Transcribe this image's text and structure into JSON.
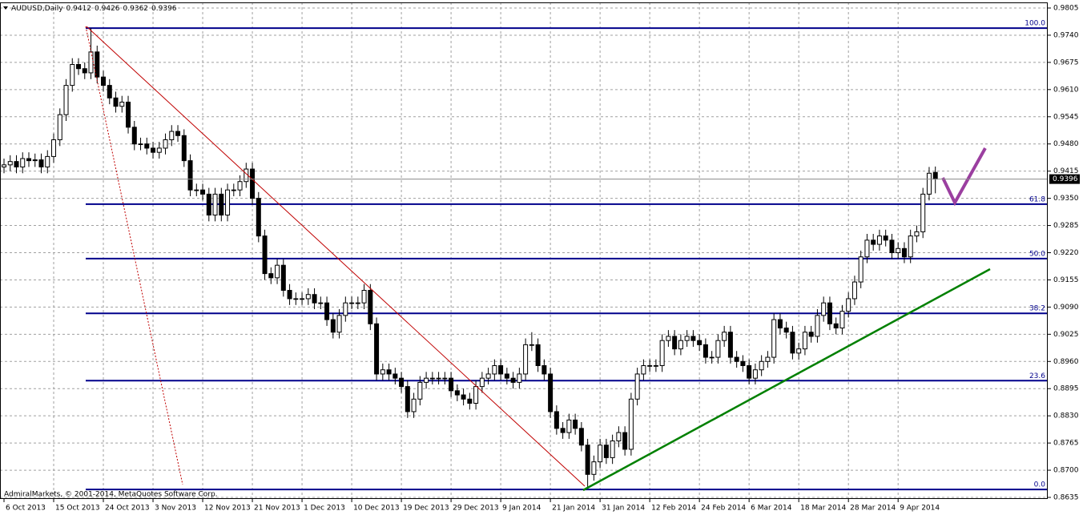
{
  "chart_data": {
    "type": "candlestick",
    "symbol": "AUDUSD,Daily",
    "copyright": "AdmiralMarkets, © 2001-2014, MetaQuotes Software Corp.",
    "ylim": [
      0.86312,
      0.98184
    ],
    "xlim": [
      -0.645,
      168.1
    ],
    "grid": true,
    "bull_color": "#ffffff",
    "bear_color": "#000000",
    "yticks": [
      0.9805,
      {
        "value": 0.974,
        "label": "0.9740"
      },
      0.9675,
      {
        "value": 0.961,
        "label": "0.9610"
      },
      0.9545,
      {
        "value": 0.948,
        "label": "0.9480"
      },
      0.9415,
      {
        "value": 0.935,
        "label": "0.9350"
      },
      0.9285,
      {
        "value": 0.922,
        "label": "0.9220"
      },
      0.9155,
      {
        "value": 0.909,
        "label": "0.9090"
      },
      0.9025,
      {
        "value": 0.896,
        "label": "0.8960"
      },
      0.8895,
      {
        "value": 0.883,
        "label": "0.8830"
      },
      0.8765,
      {
        "value": 0.87,
        "label": "0.8700"
      },
      0.8635
    ],
    "xticks": [
      {
        "value": 0,
        "label": "6 Oct 2013"
      },
      {
        "value": 8,
        "label": "15 Oct 2013"
      },
      {
        "value": 16,
        "label": "24 Oct 2013"
      },
      {
        "value": 24,
        "label": "3 Nov 2013"
      },
      {
        "value": 32,
        "label": "12 Nov 2013"
      },
      {
        "value": 40,
        "label": "21 Nov 2013"
      },
      {
        "value": 48,
        "label": "1 Dec 2013"
      },
      {
        "value": 56,
        "label": "10 Dec 2013"
      },
      {
        "value": 64,
        "label": "19 Dec 2013"
      },
      {
        "value": 72,
        "label": "29 Dec 2013"
      },
      {
        "value": 80,
        "label": "9 Jan 2014"
      },
      {
        "value": 88,
        "label": "21 Jan 2014"
      },
      {
        "value": 96,
        "label": "31 Jan 2014"
      },
      {
        "value": 104,
        "label": "12 Feb 2014"
      },
      {
        "value": 112,
        "label": "24 Feb 2014"
      },
      {
        "value": 120,
        "label": "6 Mar 2014"
      },
      {
        "value": 128,
        "label": "18 Mar 2014"
      },
      {
        "value": 136,
        "label": "28 Mar 2014"
      },
      {
        "value": 144,
        "label": "9 Apr 2014"
      }
    ],
    "fibonacci": [
      {
        "label": "100.0",
        "value": 0.9757
      },
      {
        "label": "61.8",
        "value": 0.9336
      },
      {
        "label": "50.0",
        "value": 0.9206
      },
      {
        "label": "38.2",
        "value": 0.9075
      },
      {
        "label": "23.6",
        "value": 0.8914
      },
      {
        "label": "0.0",
        "value": 0.8654
      }
    ],
    "fib_color": "#00008b",
    "candles": [
      [
        0.9425,
        0.9445,
        0.941,
        0.943
      ],
      [
        0.943,
        0.9453,
        0.9415,
        0.9438
      ],
      [
        0.9438,
        0.9453,
        0.941,
        0.9425
      ],
      [
        0.9425,
        0.946,
        0.941,
        0.9445
      ],
      [
        0.9445,
        0.946,
        0.9425,
        0.944
      ],
      [
        0.944,
        0.9457,
        0.9425,
        0.9442
      ],
      [
        0.9442,
        0.9457,
        0.941,
        0.9425
      ],
      [
        0.9425,
        0.9465,
        0.941,
        0.945
      ],
      [
        0.945,
        0.9505,
        0.9435,
        0.949
      ],
      [
        0.949,
        0.9565,
        0.9475,
        0.955
      ],
      [
        0.955,
        0.9635,
        0.9535,
        0.962
      ],
      [
        0.962,
        0.9685,
        0.9605,
        0.967
      ],
      [
        0.967,
        0.9685,
        0.9645,
        0.966
      ],
      [
        0.966,
        0.9675,
        0.9635,
        0.965
      ],
      [
        0.965,
        0.9757,
        0.9635,
        0.97
      ],
      [
        0.97,
        0.9715,
        0.9625,
        0.964
      ],
      [
        0.964,
        0.9655,
        0.9605,
        0.962
      ],
      [
        0.962,
        0.9635,
        0.9575,
        0.959
      ],
      [
        0.959,
        0.9605,
        0.9555,
        0.957
      ],
      [
        0.957,
        0.9595,
        0.9555,
        0.958
      ],
      [
        0.958,
        0.9595,
        0.9505,
        0.952
      ],
      [
        0.952,
        0.9535,
        0.9465,
        0.948
      ],
      [
        0.948,
        0.9495,
        0.9465,
        0.948
      ],
      [
        0.948,
        0.9495,
        0.9455,
        0.947
      ],
      [
        0.947,
        0.9485,
        0.9445,
        0.946
      ],
      [
        0.946,
        0.9485,
        0.9445,
        0.947
      ],
      [
        0.947,
        0.9505,
        0.9455,
        0.949
      ],
      [
        0.949,
        0.9525,
        0.9475,
        0.951
      ],
      [
        0.951,
        0.9525,
        0.9485,
        0.95
      ],
      [
        0.95,
        0.9515,
        0.9425,
        0.944
      ],
      [
        0.944,
        0.9455,
        0.9355,
        0.937
      ],
      [
        0.937,
        0.9385,
        0.9355,
        0.937
      ],
      [
        0.937,
        0.9385,
        0.9345,
        0.936
      ],
      [
        0.936,
        0.9375,
        0.9295,
        0.931
      ],
      [
        0.931,
        0.9375,
        0.9295,
        0.936
      ],
      [
        0.936,
        0.9375,
        0.9295,
        0.931
      ],
      [
        0.931,
        0.9385,
        0.9295,
        0.937
      ],
      [
        0.937,
        0.9385,
        0.9355,
        0.937
      ],
      [
        0.937,
        0.9405,
        0.9355,
        0.939
      ],
      [
        0.939,
        0.9435,
        0.9375,
        0.942
      ],
      [
        0.942,
        0.9435,
        0.9335,
        0.935
      ],
      [
        0.935,
        0.9365,
        0.9245,
        0.926
      ],
      [
        0.926,
        0.9275,
        0.9155,
        0.917
      ],
      [
        0.917,
        0.9185,
        0.9145,
        0.916
      ],
      [
        0.916,
        0.9205,
        0.9145,
        0.919
      ],
      [
        0.919,
        0.9205,
        0.9115,
        0.913
      ],
      [
        0.913,
        0.9145,
        0.9095,
        0.911
      ],
      [
        0.911,
        0.9125,
        0.9095,
        0.911
      ],
      [
        0.911,
        0.9125,
        0.9095,
        0.911
      ],
      [
        0.911,
        0.9135,
        0.9095,
        0.912
      ],
      [
        0.912,
        0.9135,
        0.9085,
        0.91
      ],
      [
        0.91,
        0.9115,
        0.9085,
        0.91
      ],
      [
        0.91,
        0.9115,
        0.9045,
        0.906
      ],
      [
        0.906,
        0.9075,
        0.9015,
        0.903
      ],
      [
        0.903,
        0.9085,
        0.9015,
        0.907
      ],
      [
        0.907,
        0.9115,
        0.9055,
        0.91
      ],
      [
        0.91,
        0.9115,
        0.9085,
        0.91
      ],
      [
        0.91,
        0.9115,
        0.9085,
        0.91
      ],
      [
        0.91,
        0.9145,
        0.9085,
        0.913
      ],
      [
        0.913,
        0.9145,
        0.9035,
        0.905
      ],
      [
        0.905,
        0.9065,
        0.8915,
        0.893
      ],
      [
        0.893,
        0.8955,
        0.8915,
        0.894
      ],
      [
        0.894,
        0.8955,
        0.8915,
        0.893
      ],
      [
        0.893,
        0.8945,
        0.8905,
        0.892
      ],
      [
        0.892,
        0.8935,
        0.8885,
        0.89
      ],
      [
        0.89,
        0.8915,
        0.8825,
        0.884
      ],
      [
        0.884,
        0.8885,
        0.8825,
        0.887
      ],
      [
        0.887,
        0.8925,
        0.8855,
        0.891
      ],
      [
        0.891,
        0.8935,
        0.8895,
        0.892
      ],
      [
        0.892,
        0.8935,
        0.8905,
        0.892
      ],
      [
        0.892,
        0.8935,
        0.8905,
        0.892
      ],
      [
        0.892,
        0.8935,
        0.8905,
        0.892
      ],
      [
        0.892,
        0.8935,
        0.8875,
        0.889
      ],
      [
        0.889,
        0.8905,
        0.8865,
        0.888
      ],
      [
        0.888,
        0.8895,
        0.8855,
        0.887
      ],
      [
        0.887,
        0.8885,
        0.8845,
        0.886
      ],
      [
        0.886,
        0.8915,
        0.8845,
        0.89
      ],
      [
        0.89,
        0.8935,
        0.8885,
        0.892
      ],
      [
        0.892,
        0.8945,
        0.8905,
        0.893
      ],
      [
        0.893,
        0.8965,
        0.8915,
        0.895
      ],
      [
        0.895,
        0.8965,
        0.8915,
        0.893
      ],
      [
        0.893,
        0.8945,
        0.8905,
        0.892
      ],
      [
        0.892,
        0.8935,
        0.8895,
        0.891
      ],
      [
        0.891,
        0.8945,
        0.8895,
        0.893
      ],
      [
        0.893,
        0.9015,
        0.8915,
        0.9
      ],
      [
        0.9,
        0.903,
        0.8985,
        0.9
      ],
      [
        0.9,
        0.9015,
        0.8935,
        0.895
      ],
      [
        0.895,
        0.8965,
        0.8915,
        0.893
      ],
      [
        0.893,
        0.8945,
        0.8825,
        0.884
      ],
      [
        0.884,
        0.8855,
        0.8785,
        0.88
      ],
      [
        0.88,
        0.8815,
        0.8775,
        0.879
      ],
      [
        0.879,
        0.8835,
        0.8775,
        0.882
      ],
      [
        0.882,
        0.8835,
        0.8785,
        0.88
      ],
      [
        0.88,
        0.8815,
        0.8745,
        0.876
      ],
      [
        0.876,
        0.8775,
        0.8658,
        0.869
      ],
      [
        0.869,
        0.8735,
        0.8675,
        0.872
      ],
      [
        0.872,
        0.8775,
        0.8705,
        0.876
      ],
      [
        0.876,
        0.8775,
        0.8715,
        0.873
      ],
      [
        0.873,
        0.8785,
        0.8715,
        0.877
      ],
      [
        0.877,
        0.8805,
        0.8755,
        0.879
      ],
      [
        0.879,
        0.8805,
        0.8735,
        0.875
      ],
      [
        0.875,
        0.8885,
        0.8735,
        0.887
      ],
      [
        0.887,
        0.8945,
        0.8855,
        0.893
      ],
      [
        0.893,
        0.8965,
        0.8915,
        0.895
      ],
      [
        0.895,
        0.8965,
        0.8935,
        0.895
      ],
      [
        0.895,
        0.8965,
        0.8935,
        0.895
      ],
      [
        0.895,
        0.9025,
        0.8935,
        0.901
      ],
      [
        0.901,
        0.9035,
        0.8995,
        0.902
      ],
      [
        0.902,
        0.9035,
        0.8975,
        0.899
      ],
      [
        0.899,
        0.9025,
        0.8975,
        0.901
      ],
      [
        0.901,
        0.9035,
        0.8995,
        0.902
      ],
      [
        0.902,
        0.9035,
        0.8995,
        0.901
      ],
      [
        0.901,
        0.9025,
        0.8985,
        0.9
      ],
      [
        0.9,
        0.9015,
        0.8955,
        0.897
      ],
      [
        0.897,
        0.8985,
        0.8955,
        0.897
      ],
      [
        0.897,
        0.9025,
        0.8955,
        0.901
      ],
      [
        0.901,
        0.9045,
        0.8995,
        0.903
      ],
      [
        0.903,
        0.9045,
        0.8955,
        0.897
      ],
      [
        0.897,
        0.8985,
        0.8945,
        0.896
      ],
      [
        0.896,
        0.8975,
        0.8935,
        0.895
      ],
      [
        0.895,
        0.8965,
        0.8905,
        0.892
      ],
      [
        0.892,
        0.8955,
        0.8905,
        0.894
      ],
      [
        0.894,
        0.8975,
        0.8925,
        0.896
      ],
      [
        0.896,
        0.8985,
        0.8945,
        0.897
      ],
      [
        0.897,
        0.9075,
        0.8955,
        0.906
      ],
      [
        0.906,
        0.9075,
        0.9025,
        0.904
      ],
      [
        0.904,
        0.9055,
        0.9015,
        0.903
      ],
      [
        0.903,
        0.9045,
        0.8965,
        0.898
      ],
      [
        0.898,
        0.9005,
        0.8965,
        0.899
      ],
      [
        0.899,
        0.9045,
        0.8975,
        0.903
      ],
      [
        0.903,
        0.9045,
        0.9005,
        0.902
      ],
      [
        0.902,
        0.9085,
        0.9005,
        0.907
      ],
      [
        0.907,
        0.9115,
        0.9055,
        0.91
      ],
      [
        0.91,
        0.9115,
        0.9035,
        0.905
      ],
      [
        0.905,
        0.9065,
        0.9025,
        0.904
      ],
      [
        0.904,
        0.9095,
        0.9025,
        0.908
      ],
      [
        0.908,
        0.9125,
        0.9065,
        0.911
      ],
      [
        0.911,
        0.9165,
        0.9095,
        0.915
      ],
      [
        0.915,
        0.9225,
        0.9135,
        0.921
      ],
      [
        0.921,
        0.9265,
        0.9195,
        0.925
      ],
      [
        0.925,
        0.9265,
        0.9225,
        0.924
      ],
      [
        0.924,
        0.9275,
        0.9225,
        0.926
      ],
      [
        0.926,
        0.9275,
        0.9235,
        0.925
      ],
      [
        0.925,
        0.9265,
        0.9205,
        0.922
      ],
      [
        0.922,
        0.9245,
        0.9205,
        0.923
      ],
      [
        0.923,
        0.9245,
        0.9195,
        0.921
      ],
      [
        0.921,
        0.9275,
        0.9195,
        0.926
      ],
      [
        0.926,
        0.9285,
        0.9245,
        0.927
      ],
      [
        0.927,
        0.9375,
        0.9255,
        0.936
      ],
      [
        0.936,
        0.9425,
        0.9345,
        0.941
      ],
      [
        0.9412,
        0.9426,
        0.9362,
        0.9396
      ]
    ]
  }
}
